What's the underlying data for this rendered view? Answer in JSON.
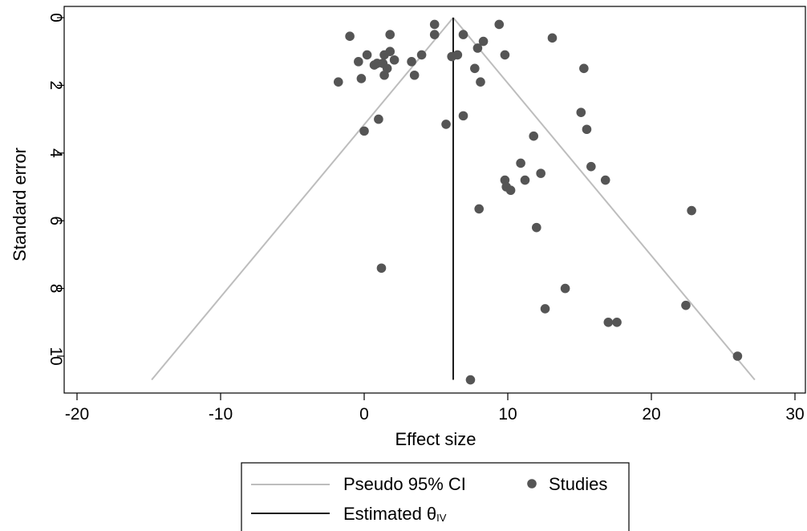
{
  "chart_data": {
    "type": "scatter",
    "subtype": "funnel-plot",
    "xlabel": "Effect size",
    "ylabel": "Standard error",
    "xlim": [
      -21,
      30.5
    ],
    "ylim": [
      11,
      -0.3
    ],
    "y_axis_reversed": true,
    "xticks": [
      -20,
      -10,
      0,
      10,
      20,
      30
    ],
    "xtick_labels": [
      "-20",
      "-10",
      "0",
      "10",
      "20",
      "30"
    ],
    "yticks": [
      0,
      2,
      4,
      6,
      8,
      10
    ],
    "ytick_labels": [
      "0",
      "2",
      "4",
      "6",
      "8",
      "10"
    ],
    "grid": false,
    "legend": {
      "position": "bottom",
      "entries": [
        {
          "label": "Pseudo 95% CI",
          "kind": "line",
          "color": "#bdbdbd"
        },
        {
          "label": "Studies",
          "kind": "marker",
          "color": "#555555"
        },
        {
          "label_main": "Estimated θ",
          "label_sub": "IV",
          "kind": "line",
          "color": "#1a1a1a"
        }
      ]
    },
    "estimated_theta": {
      "x": 6.2,
      "y_range": [
        0,
        10.7
      ],
      "color": "#1a1a1a"
    },
    "pseudo_ci": {
      "apex": [
        6.2,
        0
      ],
      "left_end": [
        -14.8,
        10.7
      ],
      "right_end": [
        27.2,
        10.7
      ],
      "color": "#bdbdbd"
    },
    "series": [
      {
        "name": "Studies",
        "color": "#555555",
        "points": [
          [
            -1.0,
            0.55
          ],
          [
            1.8,
            0.5
          ],
          [
            4.9,
            0.2
          ],
          [
            4.9,
            0.5
          ],
          [
            6.9,
            0.5
          ],
          [
            9.4,
            0.2
          ],
          [
            13.1,
            0.6
          ],
          [
            8.3,
            0.7
          ],
          [
            7.9,
            0.9
          ],
          [
            9.8,
            1.1
          ],
          [
            6.1,
            1.15
          ],
          [
            6.5,
            1.1
          ],
          [
            4.0,
            1.1
          ],
          [
            3.3,
            1.3
          ],
          [
            0.2,
            1.1
          ],
          [
            1.4,
            1.1
          ],
          [
            1.8,
            1.0
          ],
          [
            2.1,
            1.25
          ],
          [
            -0.4,
            1.3
          ],
          [
            0.7,
            1.4
          ],
          [
            0.9,
            1.35
          ],
          [
            1.3,
            1.35
          ],
          [
            1.6,
            1.5
          ],
          [
            1.4,
            1.7
          ],
          [
            3.5,
            1.7
          ],
          [
            -0.2,
            1.8
          ],
          [
            -1.8,
            1.9
          ],
          [
            7.7,
            1.5
          ],
          [
            8.1,
            1.9
          ],
          [
            15.3,
            1.5
          ],
          [
            15.1,
            2.8
          ],
          [
            1.0,
            3.0
          ],
          [
            0.0,
            3.35
          ],
          [
            6.9,
            2.9
          ],
          [
            5.7,
            3.15
          ],
          [
            15.5,
            3.3
          ],
          [
            11.8,
            3.5
          ],
          [
            10.9,
            4.3
          ],
          [
            15.8,
            4.4
          ],
          [
            9.8,
            4.8
          ],
          [
            9.9,
            5.0
          ],
          [
            10.2,
            5.1
          ],
          [
            11.2,
            4.8
          ],
          [
            12.3,
            4.6
          ],
          [
            16.8,
            4.8
          ],
          [
            8.0,
            5.65
          ],
          [
            22.8,
            5.7
          ],
          [
            12.0,
            6.2
          ],
          [
            1.2,
            7.4
          ],
          [
            14.0,
            8.0
          ],
          [
            12.6,
            8.6
          ],
          [
            22.4,
            8.5
          ],
          [
            17.0,
            9.0
          ],
          [
            17.6,
            9.0
          ],
          [
            26.0,
            10.0
          ],
          [
            7.4,
            10.7
          ]
        ]
      }
    ]
  }
}
